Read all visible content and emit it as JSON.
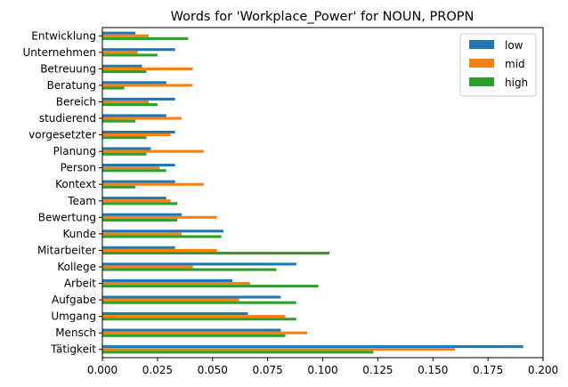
{
  "chart_data": {
    "type": "bar",
    "orientation": "horizontal",
    "title": "Words for 'Workplace_Power' for NOUN, PROPN",
    "xlabel": "",
    "ylabel": "",
    "xlim": [
      0,
      0.2
    ],
    "xticks": [
      "0.000",
      "0.025",
      "0.050",
      "0.075",
      "0.100",
      "0.125",
      "0.150",
      "0.175",
      "0.200"
    ],
    "grid": false,
    "legend_position": "top-right",
    "categories": [
      "Tätigkeit",
      "Mensch",
      "Umgang",
      "Aufgabe",
      "Arbeit",
      "Kollege",
      "Mitarbeiter",
      "Kunde",
      "Bewertung",
      "Team",
      "Kontext",
      "Person",
      "Planung",
      "vorgesetzter",
      "studierend",
      "Bereich",
      "Beratung",
      "Betreuung",
      "Unternehmen",
      "Entwicklung"
    ],
    "series": [
      {
        "name": "low",
        "color": "#1f77b4",
        "values": [
          0.191,
          0.081,
          0.066,
          0.081,
          0.059,
          0.088,
          0.033,
          0.055,
          0.036,
          0.029,
          0.033,
          0.033,
          0.022,
          0.033,
          0.029,
          0.033,
          0.029,
          0.018,
          0.033,
          0.015
        ]
      },
      {
        "name": "mid",
        "color": "#ff7f0e",
        "values": [
          0.16,
          0.093,
          0.083,
          0.062,
          0.067,
          0.041,
          0.052,
          0.036,
          0.052,
          0.031,
          0.046,
          0.026,
          0.046,
          0.031,
          0.036,
          0.021,
          0.041,
          0.041,
          0.016,
          0.021
        ]
      },
      {
        "name": "high",
        "color": "#2ca02c",
        "values": [
          0.123,
          0.083,
          0.088,
          0.088,
          0.098,
          0.079,
          0.103,
          0.054,
          0.034,
          0.034,
          0.015,
          0.029,
          0.02,
          0.02,
          0.015,
          0.025,
          0.01,
          0.02,
          0.025,
          0.039
        ]
      }
    ]
  }
}
